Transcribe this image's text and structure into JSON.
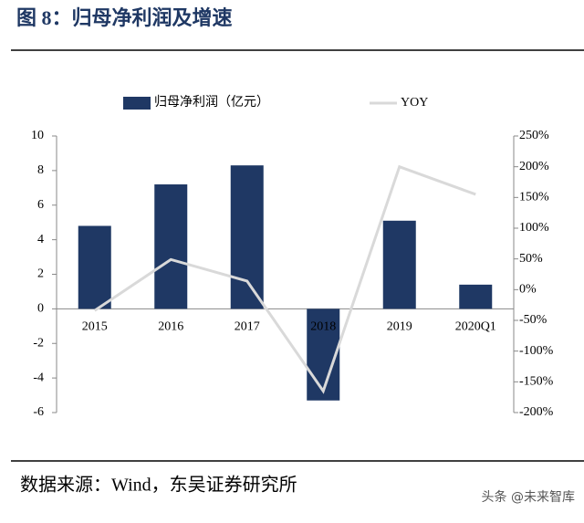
{
  "header": {
    "title": "图 8：归母净利润及增速"
  },
  "chart_data": {
    "type": "bar_line",
    "categories": [
      "2015",
      "2016",
      "2017",
      "2018",
      "2019",
      "2020Q1"
    ],
    "series": [
      {
        "name": "归母净利润（亿元）",
        "type": "bar",
        "color": "#1f3864",
        "values": [
          4.8,
          7.2,
          8.3,
          -5.3,
          5.1,
          1.4
        ]
      },
      {
        "name": "YOY",
        "type": "line",
        "axis": "y2",
        "color": "#d9d9d9",
        "values": [
          -34,
          49,
          14,
          -165,
          200,
          155
        ]
      }
    ],
    "ylim": [
      -6,
      10
    ],
    "yticks": [
      -6,
      -4,
      -2,
      0,
      2,
      4,
      6,
      8,
      10
    ],
    "y2lim": [
      -200,
      250
    ],
    "y2ticks": [
      {
        "value": -200,
        "label": "-200%"
      },
      {
        "value": -150,
        "label": "-150%"
      },
      {
        "value": -100,
        "label": "-100%"
      },
      {
        "value": -50,
        "label": "-50%"
      },
      {
        "value": 0,
        "label": "0%"
      },
      {
        "value": 50,
        "label": "50%"
      },
      {
        "value": 100,
        "label": "100%"
      },
      {
        "value": 150,
        "label": "150%"
      },
      {
        "value": 200,
        "label": "200%"
      },
      {
        "value": 250,
        "label": "250%"
      }
    ],
    "legend": "top"
  },
  "footer": {
    "source": "数据来源：Wind，东吴证券研究所",
    "watermark": "头条 @未来智库"
  }
}
